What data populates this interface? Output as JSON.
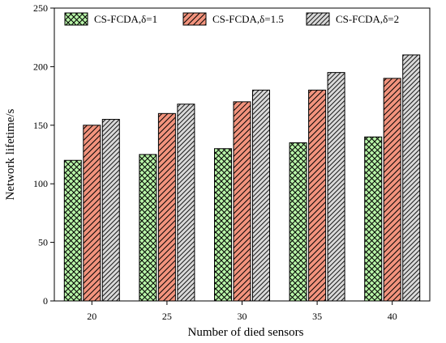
{
  "chart_data": {
    "type": "bar",
    "xlabel": "Number of died sensors",
    "ylabel": "Network lifetime/s",
    "categories": [
      "20",
      "25",
      "30",
      "35",
      "40"
    ],
    "ylim": [
      0,
      250
    ],
    "yticks": [
      0,
      50,
      100,
      150,
      200,
      250
    ],
    "grid": false,
    "legend_placement": "top",
    "series": [
      {
        "name": "CS-FCDA,δ=1",
        "values": [
          120,
          125,
          130,
          135,
          140
        ],
        "color": "#b8f5a8",
        "pattern": "crosshatch"
      },
      {
        "name": "CS-FCDA,δ=1.5",
        "values": [
          150,
          160,
          170,
          180,
          190
        ],
        "color": "#f2937d",
        "pattern": "diagonal"
      },
      {
        "name": "CS-FCDA,δ=2",
        "values": [
          155,
          168,
          180,
          195,
          210
        ],
        "color": "#d9d9d9",
        "pattern": "diagonal"
      }
    ]
  }
}
